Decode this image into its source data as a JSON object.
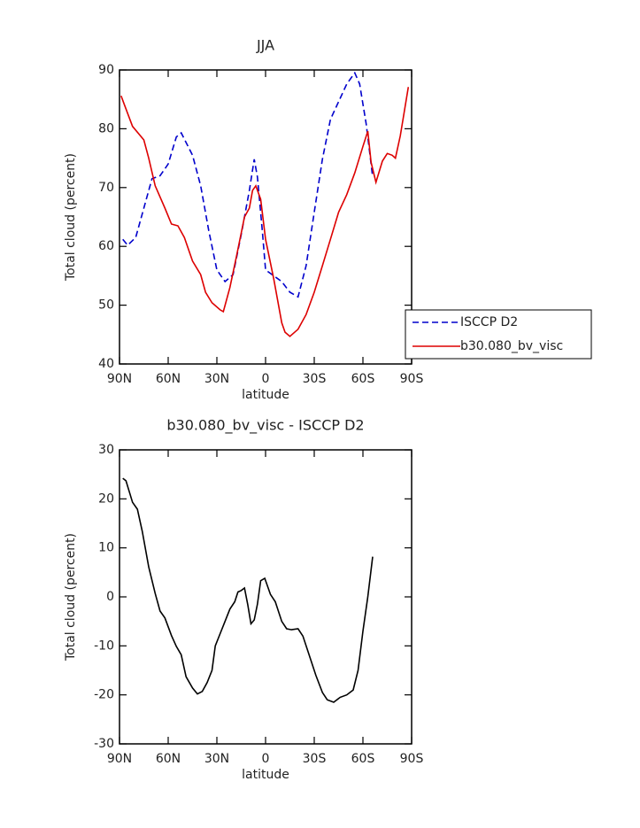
{
  "chart_data": [
    {
      "type": "line",
      "title": "JJA",
      "xlabel": "latitude",
      "ylabel": "Total cloud (percent)",
      "xlim": [
        90,
        -90
      ],
      "xticks": [
        {
          "value": 90,
          "label": "90N"
        },
        {
          "value": 60,
          "label": "60N"
        },
        {
          "value": 30,
          "label": "30N"
        },
        0,
        {
          "value": -30,
          "label": "30S"
        },
        {
          "value": -60,
          "label": "60S"
        },
        {
          "value": -90,
          "label": "90S"
        }
      ],
      "ylim": [
        40,
        90
      ],
      "yticks": [
        40,
        50,
        60,
        70,
        80,
        90
      ],
      "legend": "right",
      "series": [
        {
          "name": "ISCCP D2",
          "color": "#0000cc",
          "dash": "dashed",
          "x": [
            88,
            85,
            80,
            75,
            70,
            65,
            60,
            55,
            52,
            45,
            40,
            35,
            30,
            25,
            20,
            15,
            10,
            7,
            5,
            2,
            0,
            -5,
            -10,
            -15,
            -20,
            -25,
            -30,
            -35,
            -40,
            -45,
            -50,
            -55,
            -58,
            -62,
            -66
          ],
          "values": [
            61.2,
            60.2,
            61.5,
            66.5,
            71.5,
            72,
            74,
            78.6,
            79.3,
            75.5,
            70.3,
            62.7,
            56,
            54,
            55.2,
            62,
            69.5,
            74.8,
            71.8,
            62.7,
            56,
            55,
            54,
            52.2,
            51.4,
            56.7,
            65.8,
            74.8,
            81.6,
            84.6,
            87.6,
            89.5,
            87.6,
            80.8,
            71.8
          ]
        },
        {
          "name": "b30.080_bv_visc",
          "color": "#dd0000",
          "dash": "solid",
          "x": [
            89,
            87,
            82,
            75,
            72,
            68,
            62,
            58,
            54,
            50,
            45,
            40,
            37,
            33,
            28,
            26,
            22,
            18,
            13,
            10,
            8,
            6,
            3,
            0,
            -5,
            -10,
            -12,
            -15,
            -20,
            -25,
            -30,
            -35,
            -40,
            -45,
            -50,
            -55,
            -60,
            -63,
            -65,
            -68,
            -72,
            -75,
            -78,
            -80,
            -83,
            -88
          ],
          "values": [
            85.6,
            84.1,
            80.4,
            78.1,
            75,
            70.3,
            66.5,
            63.8,
            63.5,
            61.5,
            57.5,
            55.2,
            52.2,
            50.4,
            49.2,
            48.9,
            53,
            58.2,
            65,
            66.5,
            69.5,
            70.3,
            68,
            61.2,
            54.5,
            47,
            45.4,
            44.7,
            45.9,
            48.4,
            52.2,
            56.7,
            61.2,
            65.8,
            68.8,
            72.5,
            77,
            79.6,
            74.3,
            70.9,
            74.5,
            75.8,
            75.5,
            75,
            78.8,
            87.1
          ]
        }
      ]
    },
    {
      "type": "line",
      "title": "b30.080_bv_visc - ISCCP D2",
      "xlabel": "latitude",
      "ylabel": "Total cloud (percent)",
      "xlim": [
        90,
        -90
      ],
      "xticks": [
        {
          "value": 90,
          "label": "90N"
        },
        {
          "value": 60,
          "label": "60N"
        },
        {
          "value": 30,
          "label": "30N"
        },
        0,
        {
          "value": -30,
          "label": "30S"
        },
        {
          "value": -60,
          "label": "60S"
        },
        {
          "value": -90,
          "label": "90S"
        }
      ],
      "ylim": [
        -30,
        30
      ],
      "yticks": [
        -30,
        -20,
        -10,
        0,
        10,
        20,
        30
      ],
      "series": [
        {
          "color": "#000000",
          "dash": "solid",
          "x": [
            88,
            86,
            82,
            79,
            76,
            72,
            68,
            65,
            62,
            58,
            55,
            52,
            49,
            45,
            42,
            39,
            36,
            33,
            31,
            28,
            25,
            22,
            19,
            17,
            15,
            13,
            11,
            9,
            7,
            5,
            3,
            0.5,
            -3,
            -6,
            -10,
            -13,
            -16,
            -20,
            -23,
            -27,
            -31,
            -35,
            -38,
            -42,
            -46,
            -50,
            -54,
            -57,
            -60,
            -63,
            -66
          ],
          "values": [
            24.2,
            23.7,
            19.3,
            17.9,
            13.4,
            6.1,
            0.7,
            -2.9,
            -4.3,
            -7.9,
            -10.1,
            -11.8,
            -16.3,
            -18.6,
            -19.8,
            -19.3,
            -17.5,
            -15,
            -10,
            -7.5,
            -5,
            -2.5,
            -1,
            1,
            1.3,
            1.8,
            -1.5,
            -5.5,
            -4.7,
            -1.5,
            3.3,
            3.8,
            0.5,
            -1,
            -5,
            -6.5,
            -6.7,
            -6.5,
            -8,
            -12,
            -16,
            -19.5,
            -21,
            -21.5,
            -20.5,
            -20,
            -19,
            -15,
            -7,
            0,
            8.2
          ]
        }
      ]
    }
  ]
}
